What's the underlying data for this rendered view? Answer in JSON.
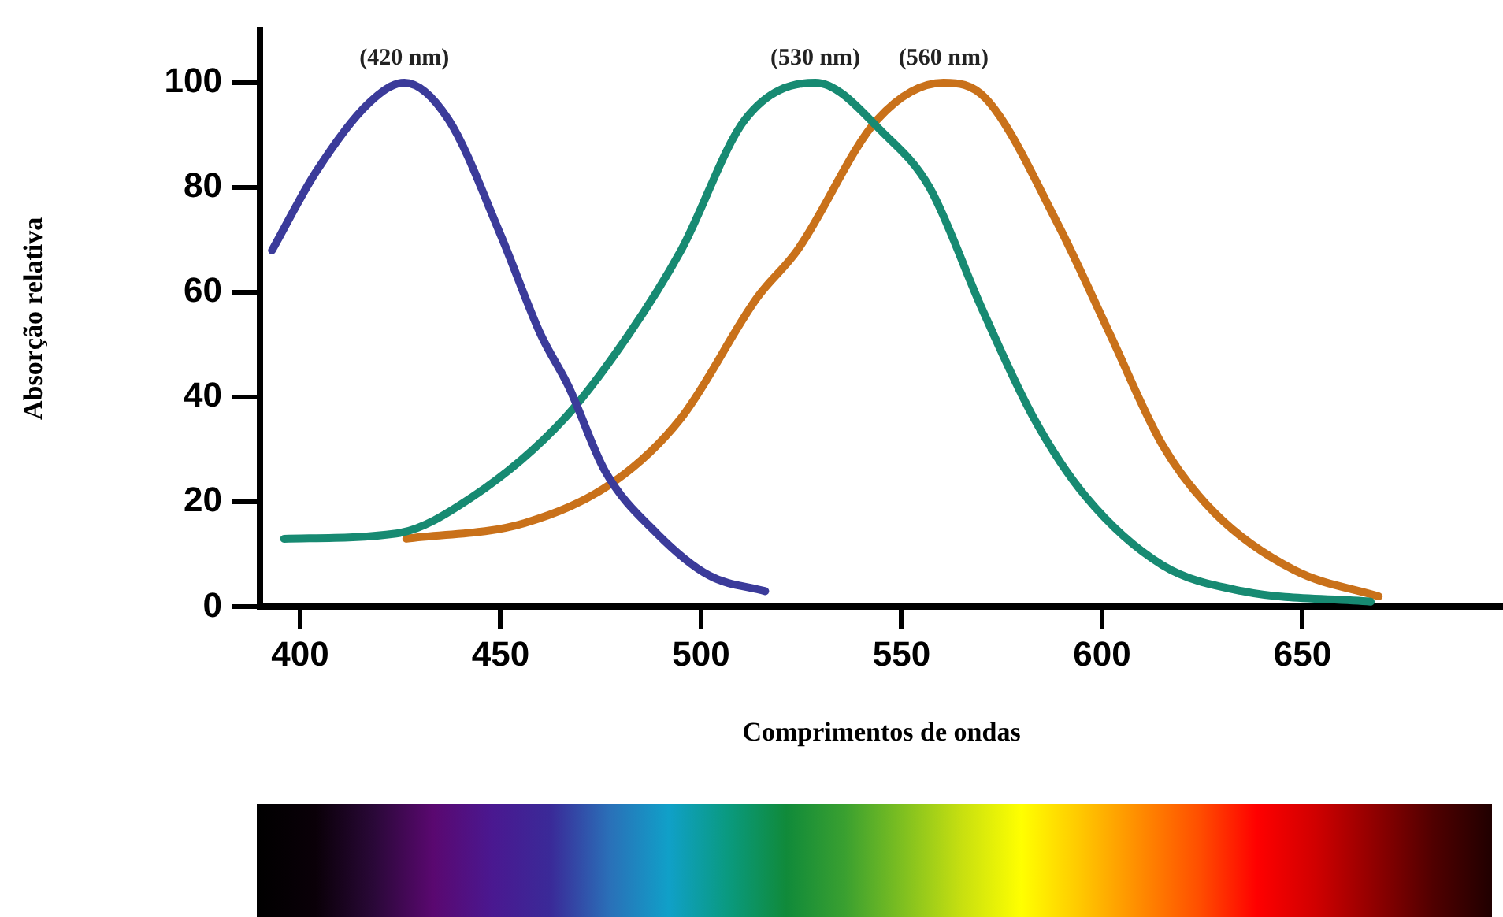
{
  "chart_data": {
    "type": "line",
    "xlabel": "Comprimentos de ondas",
    "ylabel": "Absorção relativa",
    "xlim": [
      390,
      700
    ],
    "xticks": [
      400,
      450,
      500,
      550,
      600,
      650
    ],
    "ylim": [
      0,
      110
    ],
    "yticks": [
      0,
      20,
      40,
      60,
      80,
      100
    ],
    "grid": false,
    "legend": false,
    "marker": "none",
    "line_style": "solid",
    "series": [
      {
        "color": "#3b3b9a",
        "x": [
          393,
          404,
          417,
          426,
          437,
          450,
          460,
          467,
          476,
          489,
          502,
          516
        ],
        "values": [
          68,
          83,
          96,
          100,
          93,
          71,
          52,
          42,
          26,
          14,
          6,
          3
        ]
      },
      {
        "color": "#178a72",
        "x": [
          396,
          424,
          443,
          466,
          482,
          495,
          511,
          528.5,
          546,
          557,
          570,
          583,
          596,
          615,
          635,
          667
        ],
        "values": [
          13,
          14,
          21,
          36,
          52,
          68,
          93,
          100,
          90,
          80,
          57,
          36,
          21,
          8,
          3,
          1
        ]
      },
      {
        "color": "#c9711a",
        "x": [
          426.5,
          456,
          478.5,
          495,
          514,
          524,
          544,
          560.5,
          571,
          589,
          602,
          615,
          628,
          648,
          669
        ],
        "values": [
          13,
          16,
          24,
          36,
          59,
          68,
          93,
          100,
          97,
          73,
          52,
          31,
          18,
          7,
          2
        ]
      }
    ],
    "annotations": [
      {
        "text": "(420 nm)",
        "x": 426,
        "y": 100
      },
      {
        "text": "(530 nm)",
        "x": 528.5,
        "y": 100
      },
      {
        "text": "(560 nm)",
        "x": 560.5,
        "y": 100
      }
    ]
  }
}
